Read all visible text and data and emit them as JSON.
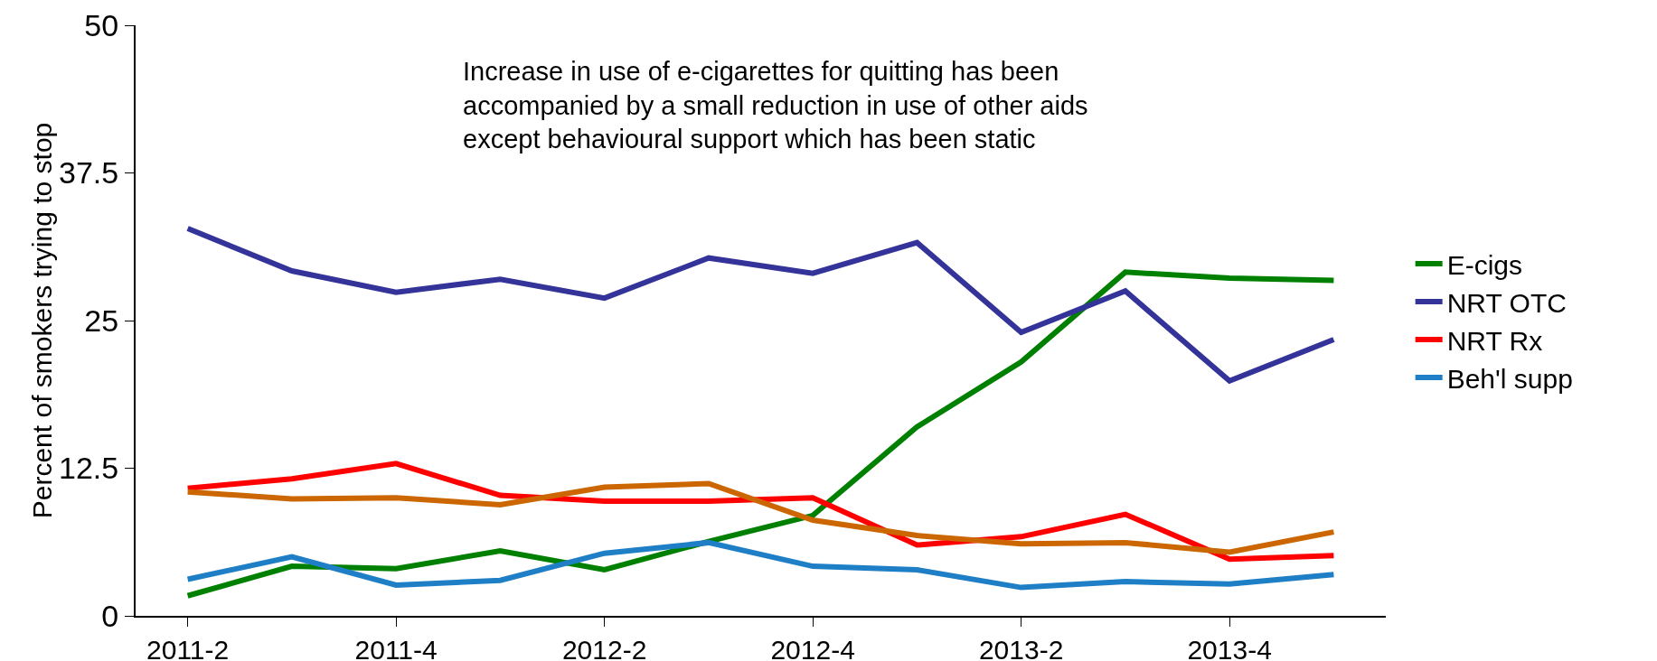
{
  "chart_data": {
    "type": "line",
    "ylabel": "Percent of smokers trying to stop",
    "annotations": [
      "Increase in use of e-cigarettes for quitting has been\naccompanied by a small reduction in use of other aids\nexcept behavioural support which has been static"
    ],
    "categories": [
      "2011-2",
      null,
      "2011-4",
      null,
      "2012-2",
      null,
      "2012-4",
      null,
      "2013-2",
      null,
      "2013-4",
      null
    ],
    "ylim": [
      0,
      50
    ],
    "yticks": [
      0,
      12.5,
      25,
      37.5,
      50
    ],
    "grid": false,
    "legend": "right",
    "marker": "none",
    "line_style": "solid",
    "series": [
      {
        "name": "E-cigs",
        "color": "#008000",
        "values": [
          1.7,
          4.2,
          4.0,
          5.5,
          3.9,
          6.3,
          8.5,
          16.0,
          21.5,
          29.1,
          28.6,
          28.4
        ]
      },
      {
        "name": "NRT OTC",
        "color": "#333399",
        "values": [
          32.8,
          29.2,
          27.4,
          28.5,
          26.9,
          30.3,
          29.0,
          31.6,
          24.0,
          27.5,
          19.9,
          23.4
        ]
      },
      {
        "name": "NRT Rx",
        "color": "#ff0000",
        "values": [
          10.8,
          11.6,
          12.9,
          10.2,
          9.7,
          9.7,
          10.0,
          6.0,
          6.7,
          8.6,
          4.8,
          5.1
        ]
      },
      {
        "color": "#cc6600",
        "values": [
          10.5,
          9.9,
          10.0,
          9.4,
          10.9,
          11.2,
          8.1,
          6.8,
          6.1,
          6.2,
          5.4,
          7.1
        ]
      },
      {
        "name": "Beh'l supp",
        "color": "#1f7fc6",
        "values": [
          3.1,
          5.0,
          2.6,
          3.0,
          5.3,
          6.2,
          4.2,
          3.9,
          2.4,
          2.9,
          2.7,
          3.5
        ]
      }
    ]
  }
}
